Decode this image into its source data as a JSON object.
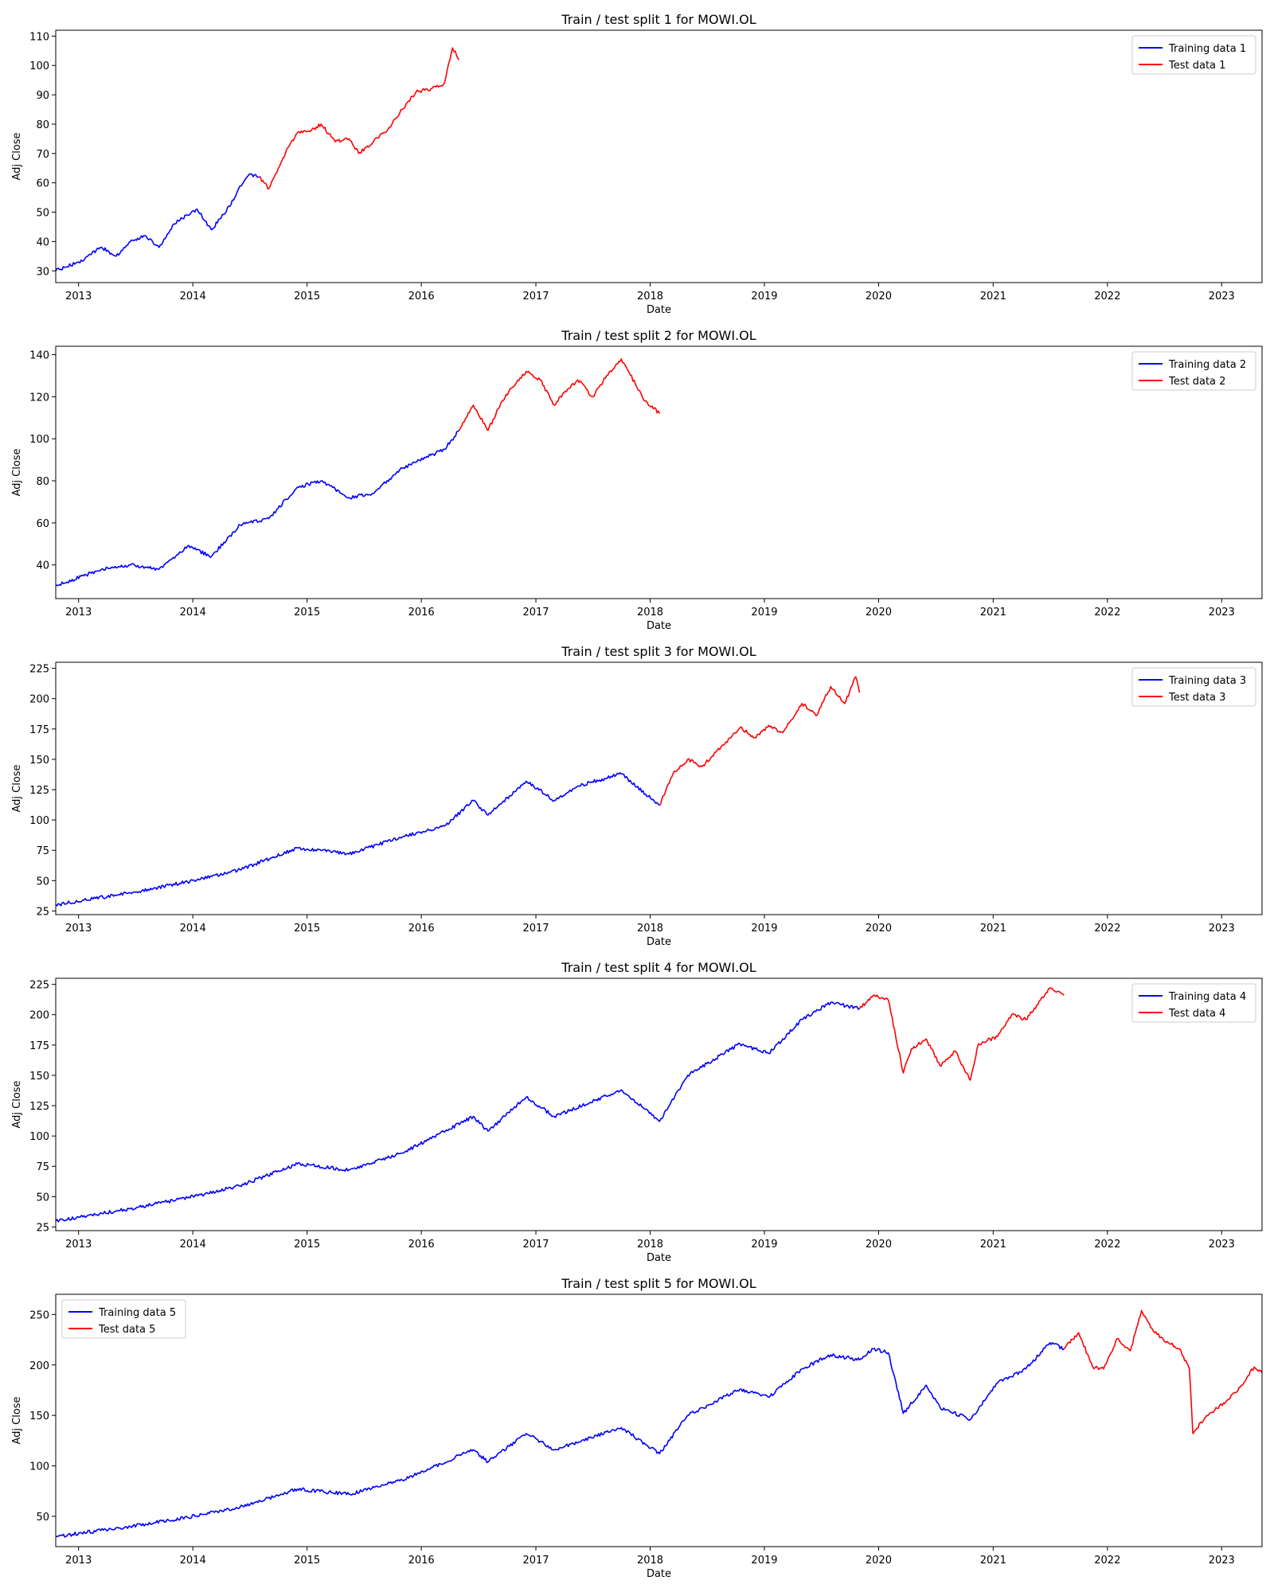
{
  "figure": {
    "background": "#ffffff"
  },
  "colors": {
    "train": "#0000ff",
    "test": "#ff0000"
  },
  "chart_data": [
    {
      "type": "line",
      "title": "Train / test split 1 for MOWI.OL",
      "xlabel": "Date",
      "ylabel": "Adj Close",
      "x_ticks": [
        "2013",
        "2014",
        "2015",
        "2016",
        "2017",
        "2018",
        "2019",
        "2020",
        "2021",
        "2022",
        "2023"
      ],
      "xlim": [
        "2012-10-20",
        "2023-05-10"
      ],
      "ylim": [
        26,
        112
      ],
      "yticks": [
        30,
        40,
        50,
        60,
        70,
        80,
        90,
        100,
        110
      ],
      "legend": "top-right",
      "series": [
        {
          "name": "Training data 1",
          "color": "#0000ff",
          "x": [
            "2012-10-20",
            "2013-01-01",
            "2013-03-15",
            "2013-05-01",
            "2013-06-15",
            "2013-08-01",
            "2013-09-15",
            "2013-11-01",
            "2013-12-15",
            "2014-01-15",
            "2014-03-01",
            "2014-04-01",
            "2014-05-15",
            "2014-06-01",
            "2014-07-01",
            "2014-08-01"
          ],
          "y": [
            30,
            33,
            38,
            35,
            40,
            42,
            38,
            46,
            49,
            51,
            44,
            48,
            55,
            59,
            63,
            62
          ]
        },
        {
          "name": "Test data 1",
          "color": "#ff0000",
          "x": [
            "2014-08-01",
            "2014-09-01",
            "2014-10-01",
            "2014-11-01",
            "2014-12-01",
            "2015-01-15",
            "2015-02-15",
            "2015-04-01",
            "2015-05-15",
            "2015-06-15",
            "2015-08-01",
            "2015-09-15",
            "2015-11-01",
            "2015-12-15",
            "2016-02-01",
            "2016-03-15",
            "2016-04-10",
            "2016-05-01"
          ],
          "y": [
            62,
            58,
            65,
            72,
            77,
            78,
            80,
            74,
            75,
            70,
            74,
            78,
            85,
            91,
            92,
            94,
            106,
            102
          ]
        }
      ]
    },
    {
      "type": "line",
      "title": "Train / test split 2 for MOWI.OL",
      "xlabel": "Date",
      "ylabel": "Adj Close",
      "x_ticks": [
        "2013",
        "2014",
        "2015",
        "2016",
        "2017",
        "2018",
        "2019",
        "2020",
        "2021",
        "2022",
        "2023"
      ],
      "xlim": [
        "2012-10-20",
        "2023-05-10"
      ],
      "ylim": [
        24,
        144
      ],
      "yticks": [
        40,
        60,
        80,
        100,
        120,
        140
      ],
      "legend": "top-right",
      "series": [
        {
          "name": "Training data 2",
          "color": "#0000ff",
          "x": [
            "2012-10-20",
            "2013-03-15",
            "2013-06-15",
            "2013-09-15",
            "2013-12-15",
            "2014-03-01",
            "2014-06-01",
            "2014-09-01",
            "2014-12-01",
            "2015-02-15",
            "2015-05-15",
            "2015-08-01",
            "2015-11-01",
            "2016-01-15",
            "2016-03-15",
            "2016-05-01"
          ],
          "y": [
            30,
            38,
            40,
            38,
            49,
            44,
            59,
            62,
            77,
            80,
            72,
            74,
            86,
            91,
            95,
            104
          ]
        },
        {
          "name": "Test data 2",
          "color": "#ff0000",
          "x": [
            "2016-05-01",
            "2016-06-15",
            "2016-08-01",
            "2016-09-15",
            "2016-10-15",
            "2016-12-01",
            "2017-01-15",
            "2017-03-01",
            "2017-04-01",
            "2017-05-15",
            "2017-07-01",
            "2017-08-15",
            "2017-10-01",
            "2017-11-15",
            "2017-12-15",
            "2018-01-31"
          ],
          "y": [
            104,
            116,
            104,
            118,
            124,
            132,
            128,
            116,
            122,
            128,
            120,
            130,
            138,
            126,
            118,
            112
          ]
        }
      ]
    },
    {
      "type": "line",
      "title": "Train / test split 3 for MOWI.OL",
      "xlabel": "Date",
      "ylabel": "Adj Close",
      "x_ticks": [
        "2013",
        "2014",
        "2015",
        "2016",
        "2017",
        "2018",
        "2019",
        "2020",
        "2021",
        "2022",
        "2023"
      ],
      "xlim": [
        "2012-10-20",
        "2023-05-10"
      ],
      "ylim": [
        22,
        230
      ],
      "yticks": [
        25,
        50,
        75,
        100,
        125,
        150,
        175,
        200,
        225
      ],
      "legend": "top-right",
      "series": [
        {
          "name": "Training data 3",
          "color": "#0000ff",
          "x": [
            "2012-10-20",
            "2013-06-15",
            "2013-12-15",
            "2014-06-01",
            "2014-12-01",
            "2015-05-15",
            "2015-11-01",
            "2016-03-15",
            "2016-06-15",
            "2016-08-01",
            "2016-12-01",
            "2017-03-01",
            "2017-05-15",
            "2017-10-01",
            "2018-01-31"
          ],
          "y": [
            30,
            40,
            49,
            59,
            77,
            72,
            86,
            95,
            116,
            104,
            132,
            116,
            128,
            138,
            112
          ]
        },
        {
          "name": "Test data 3",
          "color": "#ff0000",
          "x": [
            "2018-01-31",
            "2018-03-15",
            "2018-05-01",
            "2018-06-15",
            "2018-08-15",
            "2018-10-15",
            "2018-12-01",
            "2019-01-15",
            "2019-03-01",
            "2019-05-01",
            "2019-06-15",
            "2019-08-01",
            "2019-09-15",
            "2019-10-20",
            "2019-11-01"
          ],
          "y": [
            112,
            138,
            150,
            144,
            160,
            176,
            168,
            178,
            172,
            196,
            186,
            210,
            196,
            218,
            205
          ]
        }
      ]
    },
    {
      "type": "line",
      "title": "Train / test split 4 for MOWI.OL",
      "xlabel": "Date",
      "ylabel": "Adj Close",
      "x_ticks": [
        "2013",
        "2014",
        "2015",
        "2016",
        "2017",
        "2018",
        "2019",
        "2020",
        "2021",
        "2022",
        "2023"
      ],
      "xlim": [
        "2012-10-20",
        "2023-05-10"
      ],
      "ylim": [
        22,
        230
      ],
      "yticks": [
        25,
        50,
        75,
        100,
        125,
        150,
        175,
        200,
        225
      ],
      "legend": "top-right",
      "series": [
        {
          "name": "Training data 4",
          "color": "#0000ff",
          "x": [
            "2012-10-20",
            "2013-06-15",
            "2013-12-15",
            "2014-06-01",
            "2014-12-01",
            "2015-05-15",
            "2015-11-01",
            "2016-06-15",
            "2016-08-01",
            "2016-12-01",
            "2017-03-01",
            "2017-10-01",
            "2018-01-31",
            "2018-05-01",
            "2018-10-15",
            "2019-01-15",
            "2019-05-01",
            "2019-08-01",
            "2019-11-01"
          ],
          "y": [
            30,
            40,
            49,
            59,
            77,
            72,
            86,
            116,
            104,
            132,
            116,
            138,
            112,
            150,
            176,
            168,
            196,
            210,
            205
          ]
        },
        {
          "name": "Test data 4",
          "color": "#ff0000",
          "x": [
            "2019-11-01",
            "2019-12-15",
            "2020-02-01",
            "2020-03-20",
            "2020-04-15",
            "2020-06-01",
            "2020-07-15",
            "2020-09-01",
            "2020-10-20",
            "2020-11-15",
            "2021-01-15",
            "2021-03-01",
            "2021-04-15",
            "2021-06-01",
            "2021-07-01",
            "2021-08-15"
          ],
          "y": [
            205,
            216,
            212,
            152,
            172,
            180,
            158,
            170,
            146,
            176,
            182,
            200,
            196,
            212,
            222,
            216
          ]
        }
      ]
    },
    {
      "type": "line",
      "title": "Train / test split 5 for MOWI.OL",
      "xlabel": "Date",
      "ylabel": "Adj Close",
      "x_ticks": [
        "2013",
        "2014",
        "2015",
        "2016",
        "2017",
        "2018",
        "2019",
        "2020",
        "2021",
        "2022",
        "2023"
      ],
      "xlim": [
        "2012-10-20",
        "2023-05-10"
      ],
      "ylim": [
        20,
        270
      ],
      "yticks": [
        50,
        100,
        150,
        200,
        250
      ],
      "legend": "top-left",
      "series": [
        {
          "name": "Training data 5",
          "color": "#0000ff",
          "x": [
            "2012-10-20",
            "2013-06-15",
            "2013-12-15",
            "2014-06-01",
            "2014-12-01",
            "2015-05-15",
            "2015-11-01",
            "2016-06-15",
            "2016-08-01",
            "2016-12-01",
            "2017-03-01",
            "2017-10-01",
            "2018-01-31",
            "2018-05-01",
            "2018-10-15",
            "2019-01-15",
            "2019-05-01",
            "2019-08-01",
            "2019-11-01",
            "2019-12-15",
            "2020-02-01",
            "2020-03-20",
            "2020-06-01",
            "2020-07-15",
            "2020-10-20",
            "2021-01-15",
            "2021-04-15",
            "2021-07-01",
            "2021-08-15"
          ],
          "y": [
            30,
            40,
            49,
            59,
            77,
            72,
            86,
            116,
            104,
            132,
            116,
            138,
            112,
            150,
            176,
            168,
            196,
            210,
            205,
            216,
            212,
            152,
            180,
            158,
            146,
            182,
            196,
            222,
            216
          ]
        },
        {
          "name": "Test data 5",
          "color": "#ff0000",
          "x": [
            "2021-08-15",
            "2021-10-01",
            "2021-11-15",
            "2021-12-20",
            "2022-02-01",
            "2022-03-15",
            "2022-04-20",
            "2022-06-01",
            "2022-07-15",
            "2022-08-20",
            "2022-09-20",
            "2022-10-01",
            "2022-11-15",
            "2023-01-15",
            "2023-03-01",
            "2023-04-15",
            "2023-05-10"
          ],
          "y": [
            216,
            232,
            198,
            196,
            226,
            214,
            254,
            232,
            222,
            216,
            196,
            132,
            150,
            164,
            178,
            198,
            192
          ]
        }
      ]
    }
  ]
}
